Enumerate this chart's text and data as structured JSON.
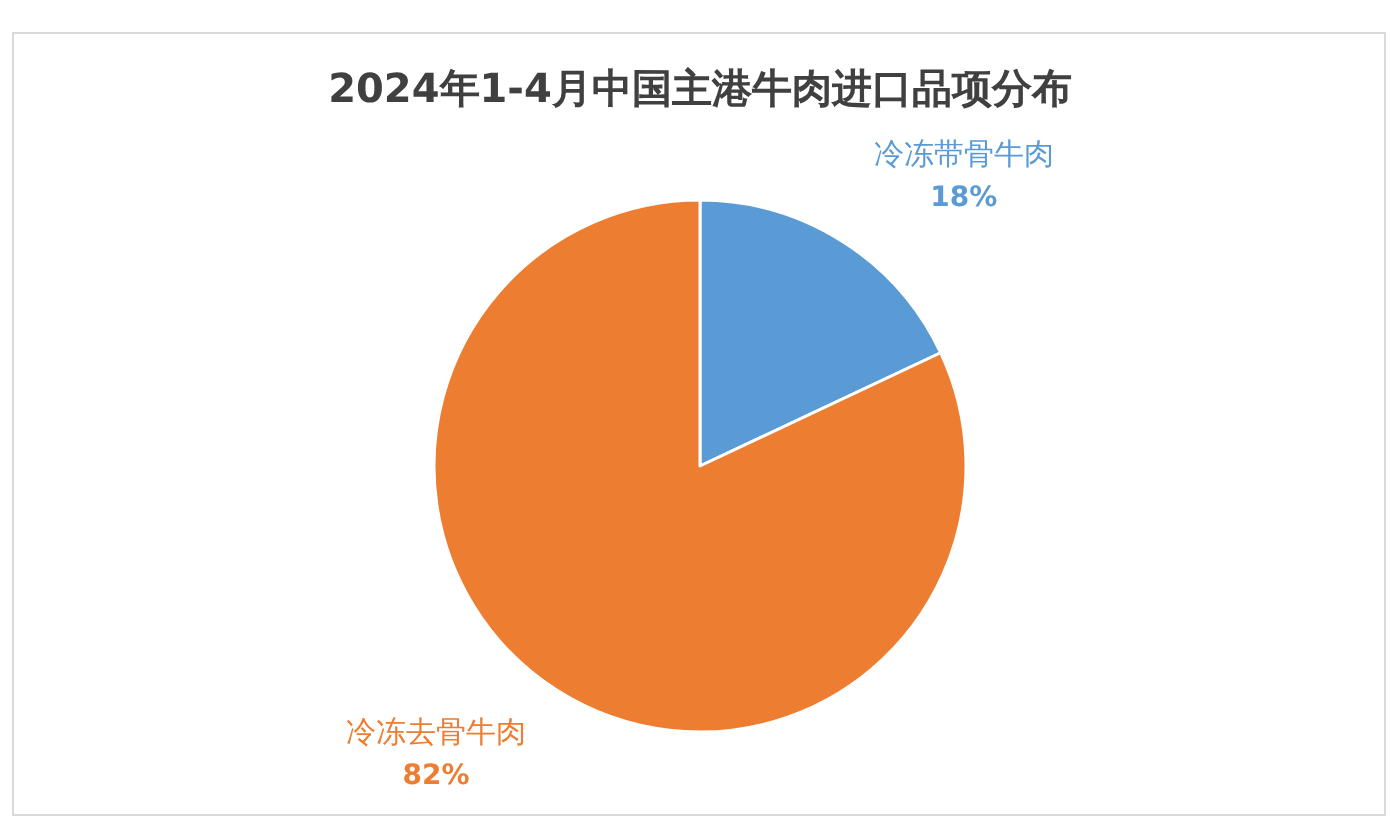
{
  "chart_data": {
    "type": "pie",
    "title": "2024年1-4月中国主港牛肉进口品项分布",
    "categories": [
      "冷冻带骨牛肉",
      "冷冻去骨牛肉"
    ],
    "values": [
      18,
      82
    ],
    "colors": [
      "#5b9bd5",
      "#ed7d31"
    ],
    "value_labels": [
      "18%",
      "82%"
    ]
  }
}
